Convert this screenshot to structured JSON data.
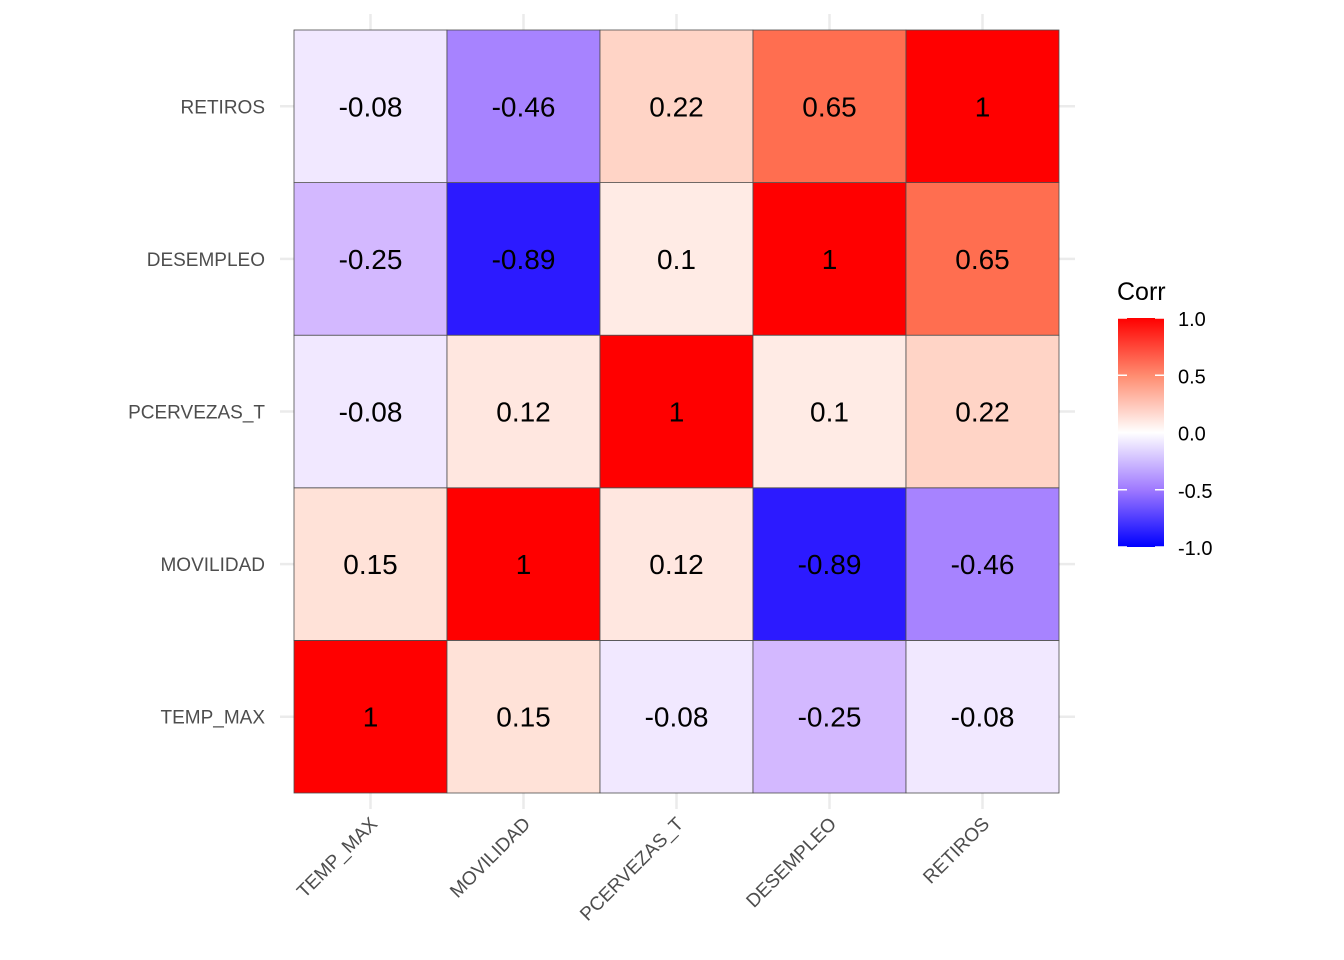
{
  "chart_data": {
    "type": "heatmap",
    "title": "",
    "xlabel": "",
    "ylabel": "",
    "x_categories": [
      "TEMP_MAX",
      "MOVILIDAD",
      "PCERVEZAS_T",
      "DESEMPLEO",
      "RETIROS"
    ],
    "y_categories": [
      "TEMP_MAX",
      "MOVILIDAD",
      "PCERVEZAS_T",
      "DESEMPLEO",
      "RETIROS"
    ],
    "matrix": [
      [
        1,
        0.15,
        -0.08,
        -0.25,
        -0.08
      ],
      [
        0.15,
        1,
        0.12,
        -0.89,
        -0.46
      ],
      [
        -0.08,
        0.12,
        1,
        0.1,
        0.22
      ],
      [
        -0.25,
        -0.89,
        0.1,
        1,
        0.65
      ],
      [
        -0.08,
        -0.46,
        0.22,
        0.65,
        1
      ]
    ],
    "matrix_note": "matrix[row][col]; row index follows y_categories from bottom (TEMP_MAX) to top (RETIROS); col index follows x_categories left to right",
    "labels": [
      [
        "1",
        "0.15",
        "-0.08",
        "-0.25",
        "-0.08"
      ],
      [
        "0.15",
        "1",
        "0.12",
        "-0.89",
        "-0.46"
      ],
      [
        "-0.08",
        "0.12",
        "1",
        "0.1",
        "0.22"
      ],
      [
        "-0.25",
        "-0.89",
        "0.1",
        "1",
        "0.65"
      ],
      [
        "-0.08",
        "-0.46",
        "0.22",
        "0.65",
        "1"
      ]
    ],
    "legend": {
      "title": "Corr",
      "position": "right",
      "range": [
        -1,
        1
      ],
      "ticks": [
        "1.0",
        "0.5",
        "0.0",
        "-0.5",
        "-1.0"
      ],
      "tick_values": [
        1,
        0.5,
        0,
        -0.5,
        -1
      ],
      "low_color": "#0000FF",
      "mid_color": "#FFFFFF",
      "high_color": "#FF0000"
    },
    "grid": true
  }
}
